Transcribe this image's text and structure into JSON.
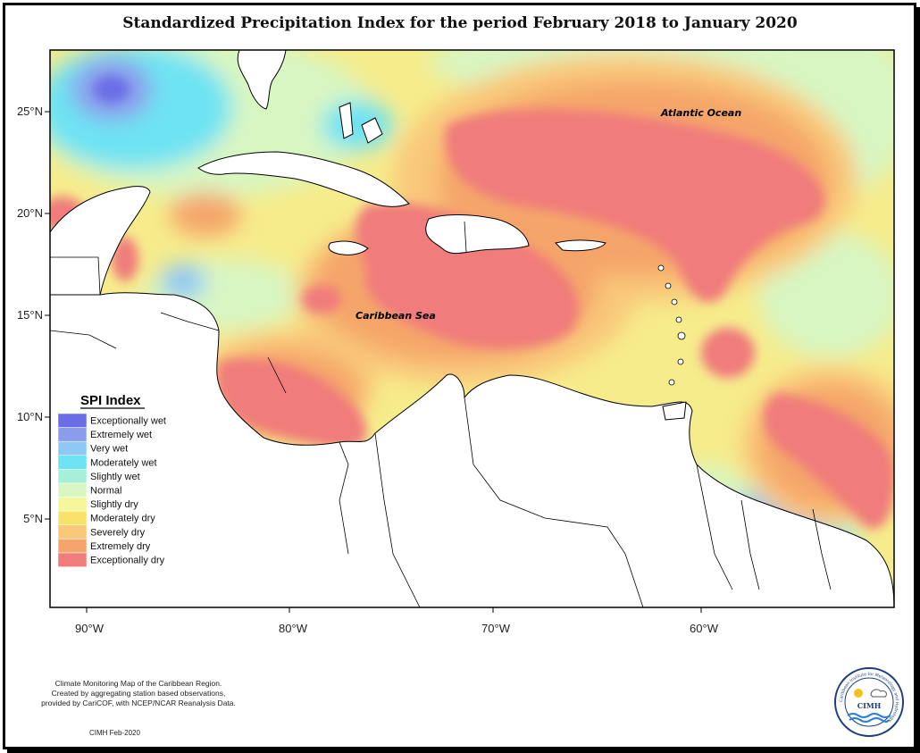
{
  "title": "Standardized Precipitation Index for the period February 2018 to January 2020",
  "map": {
    "labels": {
      "atlantic": "Atlantic Ocean",
      "caribbean": "Caribbean Sea"
    },
    "y_ticks": [
      "25°N",
      "20°N",
      "15°N",
      "10°N",
      "5°N"
    ],
    "x_ticks": [
      "90°W",
      "80°W",
      "70°W",
      "60°W"
    ]
  },
  "legend": {
    "title": "SPI Index",
    "items": [
      {
        "label": "Exceptionally wet",
        "color": "#6a6ee6"
      },
      {
        "label": "Extremely wet",
        "color": "#8c9cec"
      },
      {
        "label": "Very wet",
        "color": "#8ec8f4"
      },
      {
        "label": "Moderately wet",
        "color": "#6ee3f3"
      },
      {
        "label": "Slightly wet",
        "color": "#a6f0da"
      },
      {
        "label": "Normal",
        "color": "#d8f6c2"
      },
      {
        "label": "Slightly dry",
        "color": "#f4f79a"
      },
      {
        "label": "Moderately dry",
        "color": "#f8e36a"
      },
      {
        "label": "Severely dry",
        "color": "#f9c879"
      },
      {
        "label": "Extremely dry",
        "color": "#f5a56b"
      },
      {
        "label": "Exceptionally dry",
        "color": "#f07c7c"
      }
    ]
  },
  "footnote": {
    "line1": "Climate Monitoring Map of the Caribbean Region.",
    "line2": "Created by aggregating station based observations,",
    "line3": "provided by CariCOF, with NCEP/NCAR Reanalysis Data."
  },
  "credit": "CIMH Feb-2020",
  "logo": {
    "text": "CIMH",
    "ring_text": "Caribbean Institute for Meteorology and Hydrology"
  }
}
